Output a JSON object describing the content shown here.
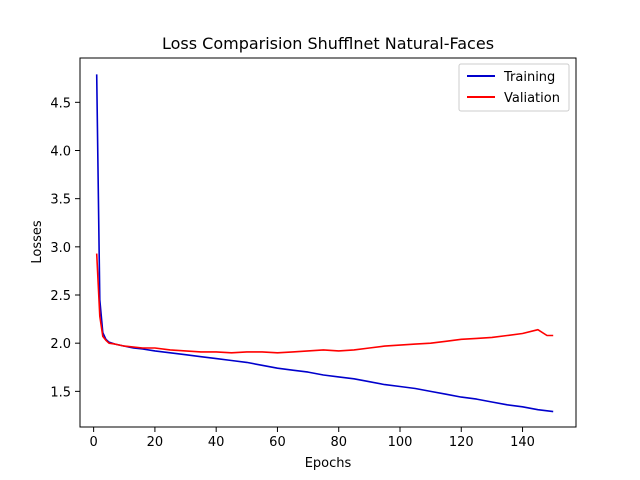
{
  "chart_data": {
    "type": "line",
    "title": "Loss Comparision Shufflnet Natural-Faces",
    "xlabel": "Epochs",
    "ylabel": "Losses",
    "xlim": [
      -4.45,
      157.45
    ],
    "ylim": [
      1.13,
      4.96
    ],
    "xticks": [
      0,
      20,
      40,
      60,
      80,
      100,
      120,
      140
    ],
    "yticks": [
      1.5,
      2.0,
      2.5,
      3.0,
      3.5,
      4.0,
      4.5
    ],
    "xtick_labels": [
      "0",
      "20",
      "40",
      "60",
      "80",
      "100",
      "120",
      "140"
    ],
    "ytick_labels": [
      "1.5",
      "2.0",
      "2.5",
      "3.0",
      "3.5",
      "4.0",
      "4.5"
    ],
    "grid": false,
    "legend_position": "top-right",
    "series": [
      {
        "name": "Training",
        "color": "#0000cc",
        "x": [
          1,
          2,
          3,
          4,
          5,
          7,
          10,
          13,
          16,
          20,
          25,
          30,
          35,
          40,
          45,
          50,
          55,
          60,
          65,
          70,
          75,
          80,
          85,
          90,
          95,
          100,
          105,
          110,
          115,
          120,
          125,
          130,
          135,
          140,
          145,
          150
        ],
        "values": [
          4.79,
          2.45,
          2.11,
          2.04,
          2.01,
          1.99,
          1.97,
          1.95,
          1.94,
          1.92,
          1.9,
          1.88,
          1.86,
          1.84,
          1.82,
          1.8,
          1.77,
          1.74,
          1.72,
          1.7,
          1.67,
          1.65,
          1.63,
          1.6,
          1.57,
          1.55,
          1.53,
          1.5,
          1.47,
          1.44,
          1.42,
          1.39,
          1.36,
          1.34,
          1.31,
          1.29
        ]
      },
      {
        "name": "Valiation",
        "color": "#ff0000",
        "x": [
          1,
          2,
          3,
          4,
          5,
          7,
          10,
          13,
          16,
          20,
          25,
          30,
          35,
          40,
          45,
          50,
          55,
          60,
          65,
          70,
          75,
          80,
          85,
          90,
          95,
          100,
          105,
          110,
          115,
          120,
          125,
          130,
          135,
          140,
          145,
          148,
          150
        ],
        "values": [
          2.93,
          2.28,
          2.07,
          2.03,
          2.0,
          1.99,
          1.97,
          1.96,
          1.95,
          1.95,
          1.93,
          1.92,
          1.91,
          1.91,
          1.9,
          1.91,
          1.91,
          1.9,
          1.91,
          1.92,
          1.93,
          1.92,
          1.93,
          1.95,
          1.97,
          1.98,
          1.99,
          2.0,
          2.02,
          2.04,
          2.05,
          2.06,
          2.08,
          2.1,
          2.14,
          2.08,
          2.08
        ]
      }
    ]
  }
}
